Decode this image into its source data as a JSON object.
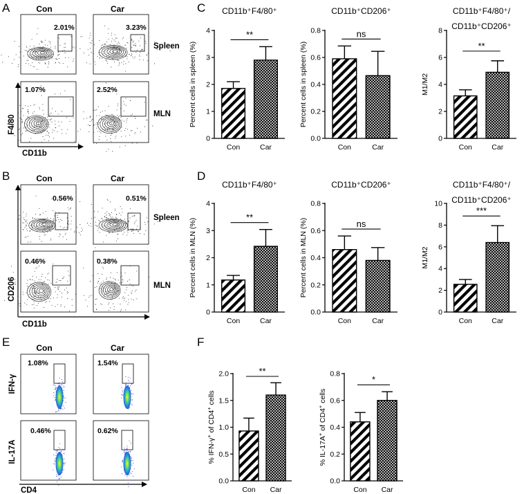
{
  "panels": {
    "A": "A",
    "B": "B",
    "C": "C",
    "D": "D",
    "E": "E",
    "F": "F"
  },
  "flow": {
    "A": {
      "headers": [
        "Con",
        "Car"
      ],
      "row_labels": [
        "Spleen",
        "MLN"
      ],
      "x_axis": "CD11b",
      "y_axis": "F4/80",
      "pct": [
        [
          "2.01%",
          "3.23%"
        ],
        [
          "1.07%",
          "2.52%"
        ]
      ]
    },
    "B": {
      "headers": [
        "Con",
        "Car"
      ],
      "row_labels": [
        "Spleen",
        "MLN"
      ],
      "x_axis": "CD11b",
      "y_axis": "CD206",
      "pct": [
        [
          "0.56%",
          "0.51%"
        ],
        [
          "0.46%",
          "0.38%"
        ]
      ]
    },
    "E": {
      "headers": [
        "Con",
        "Car"
      ],
      "row_labels": [
        "IFN-γ",
        "IL-17A"
      ],
      "x_axis": "CD4",
      "pct": [
        [
          "1.08%",
          "1.54%"
        ],
        [
          "0.46%",
          "0.62%"
        ]
      ]
    }
  },
  "chart_data": [
    {
      "id": "C1",
      "type": "bar",
      "title": "CD11b⁺F4/80⁺",
      "ylabel": "Percent cells in spleen (%)",
      "categories": [
        "Con",
        "Car"
      ],
      "values": [
        1.85,
        2.9
      ],
      "errors": [
        0.25,
        0.5
      ],
      "ylim": [
        0,
        4
      ],
      "yticks": [
        0,
        1,
        2,
        3,
        4
      ],
      "tick_labels": [
        "0",
        "1",
        "2",
        "3",
        "4"
      ],
      "significance": "**"
    },
    {
      "id": "C2",
      "type": "bar",
      "title": "CD11b⁺CD206⁺",
      "ylabel": "Percent cells in spleen (%)",
      "categories": [
        "Con",
        "Car"
      ],
      "values": [
        0.59,
        0.465
      ],
      "errors": [
        0.095,
        0.18
      ],
      "ylim": [
        0,
        0.8
      ],
      "yticks": [
        0,
        0.2,
        0.4,
        0.6,
        0.8
      ],
      "tick_labels": [
        "0.0",
        "0.2",
        "0.4",
        "0.6",
        "0.8"
      ],
      "significance": "ns"
    },
    {
      "id": "C3",
      "type": "bar",
      "title": [
        "CD11b⁺F4/80⁺/",
        "CD11b⁺CD206⁺"
      ],
      "ylabel": "M1/M2",
      "categories": [
        "Con",
        "Car"
      ],
      "values": [
        3.15,
        4.9
      ],
      "errors": [
        0.45,
        0.85
      ],
      "ylim": [
        0,
        8
      ],
      "yticks": [
        0,
        2,
        4,
        6,
        8
      ],
      "tick_labels": [
        "0",
        "2",
        "4",
        "6",
        "8"
      ],
      "significance": "**"
    },
    {
      "id": "D1",
      "type": "bar",
      "title": "CD11b⁺F4/80⁺",
      "ylabel": "Percent cells in MLN (%)",
      "categories": [
        "Con",
        "Car"
      ],
      "values": [
        1.18,
        2.42
      ],
      "errors": [
        0.17,
        0.62
      ],
      "ylim": [
        0,
        4
      ],
      "yticks": [
        0,
        1,
        2,
        3,
        4
      ],
      "tick_labels": [
        "0",
        "1",
        "2",
        "3",
        "4"
      ],
      "significance": "**"
    },
    {
      "id": "D2",
      "type": "bar",
      "title": "CD11b⁺CD206⁺",
      "ylabel": "Percent cells in MLN (%)",
      "categories": [
        "Con",
        "Car"
      ],
      "values": [
        0.46,
        0.38
      ],
      "errors": [
        0.1,
        0.095
      ],
      "ylim": [
        0,
        0.8
      ],
      "yticks": [
        0,
        0.2,
        0.4,
        0.6,
        0.8
      ],
      "tick_labels": [
        "0.0",
        "0.2",
        "0.4",
        "0.6",
        "0.8"
      ],
      "significance": "ns"
    },
    {
      "id": "D3",
      "type": "bar",
      "title": [
        "CD11b⁺F4/80⁺/",
        "CD11b⁺CD206⁺"
      ],
      "ylabel": "M1/M2",
      "categories": [
        "Con",
        "Car"
      ],
      "values": [
        2.55,
        6.4
      ],
      "errors": [
        0.45,
        1.55
      ],
      "ylim": [
        0,
        10
      ],
      "yticks": [
        0,
        2,
        4,
        6,
        8,
        10
      ],
      "tick_labels": [
        "0",
        "2",
        "4",
        "6",
        "8",
        "10"
      ],
      "significance": "***"
    },
    {
      "id": "F1",
      "type": "bar",
      "title": "",
      "ylabel": [
        "% IFN-γ",
        "+",
        " of CD4",
        "+",
        " cells"
      ],
      "categories": [
        "Con",
        "Car"
      ],
      "values": [
        0.93,
        1.6
      ],
      "errors": [
        0.24,
        0.23
      ],
      "ylim": [
        0,
        2
      ],
      "yticks": [
        0,
        0.5,
        1,
        1.5,
        2
      ],
      "tick_labels": [
        "0.0",
        "0.5",
        "1.0",
        "1.5",
        "2.0"
      ],
      "significance": "**"
    },
    {
      "id": "F2",
      "type": "bar",
      "title": "",
      "ylabel": [
        "% IL-17A",
        "+",
        " of CD4",
        "+",
        " cells"
      ],
      "categories": [
        "Con",
        "Car"
      ],
      "values": [
        0.44,
        0.6
      ],
      "errors": [
        0.07,
        0.065
      ],
      "ylim": [
        0,
        0.8
      ],
      "yticks": [
        0,
        0.2,
        0.4,
        0.6,
        0.8
      ],
      "tick_labels": [
        "0.0",
        "0.2",
        "0.4",
        "0.6",
        "0.8"
      ],
      "significance": "*"
    }
  ]
}
